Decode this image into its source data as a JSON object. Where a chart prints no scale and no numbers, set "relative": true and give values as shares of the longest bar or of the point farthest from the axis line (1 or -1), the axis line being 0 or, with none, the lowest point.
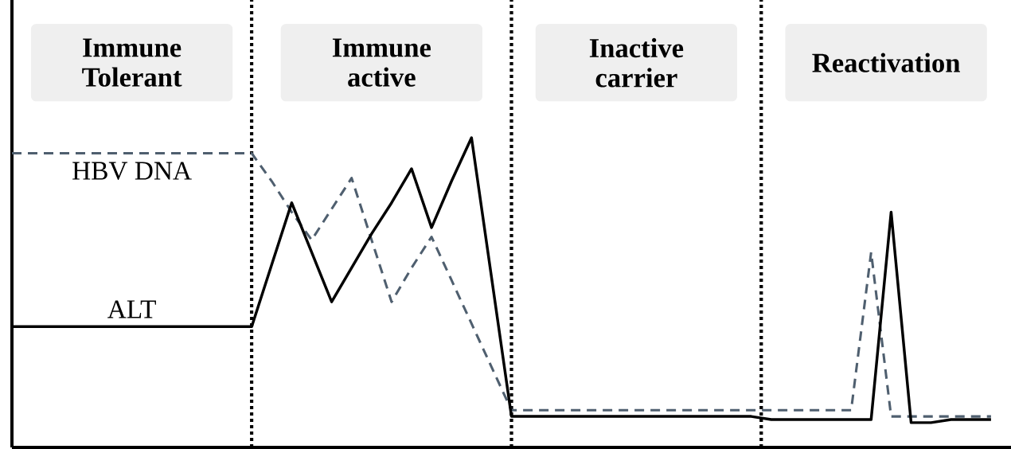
{
  "chart_data": {
    "type": "line",
    "relative": true,
    "categories": [
      null,
      null,
      null,
      null,
      null,
      null,
      null,
      null,
      null,
      null,
      null,
      null,
      null,
      null,
      null,
      null,
      null,
      null,
      null,
      null,
      null,
      null,
      null,
      null,
      null,
      null,
      null,
      null,
      null,
      null,
      null,
      null,
      null,
      null,
      null,
      null,
      null,
      null,
      null,
      null,
      null,
      null,
      null,
      null,
      null,
      null,
      null,
      null,
      null,
      null
    ],
    "annotations": [
      "Immune Tolerant",
      "Immune active",
      "Inactive carrier",
      "Reactivation"
    ],
    "series": [
      {
        "name": "HBV DNA",
        "color": "#4f5f6f",
        "line_style": "dashed",
        "values": [
          0.95,
          0.95,
          0.95,
          0.95,
          0.95,
          0.95,
          0.95,
          0.95,
          0.95,
          0.95,
          0.95,
          0.95,
          0.95,
          0.86,
          0.76,
          0.67,
          0.77,
          0.87,
          0.67,
          0.47,
          0.58,
          0.68,
          0.54,
          0.4,
          0.26,
          0.12,
          0.12,
          0.12,
          0.12,
          0.12,
          0.12,
          0.12,
          0.12,
          0.12,
          0.12,
          0.12,
          0.12,
          0.12,
          0.12,
          0.12,
          0.12,
          0.12,
          0.12,
          0.63,
          0.1,
          0.1,
          0.1,
          0.1,
          0.1,
          0.1
        ]
      },
      {
        "name": "ALT",
        "color": "#000000",
        "line_style": "solid",
        "values": [
          0.39,
          0.39,
          0.39,
          0.39,
          0.39,
          0.39,
          0.39,
          0.39,
          0.39,
          0.39,
          0.39,
          0.39,
          0.39,
          0.59,
          0.79,
          0.63,
          0.47,
          0.58,
          0.69,
          0.79,
          0.9,
          0.71,
          0.86,
          1.0,
          0.55,
          0.1,
          0.1,
          0.1,
          0.1,
          0.1,
          0.1,
          0.1,
          0.1,
          0.1,
          0.1,
          0.1,
          0.1,
          0.1,
          0.09,
          0.09,
          0.09,
          0.09,
          0.09,
          0.09,
          0.76,
          0.08,
          0.08,
          0.09,
          0.09,
          0.09
        ]
      }
    ]
  }
}
